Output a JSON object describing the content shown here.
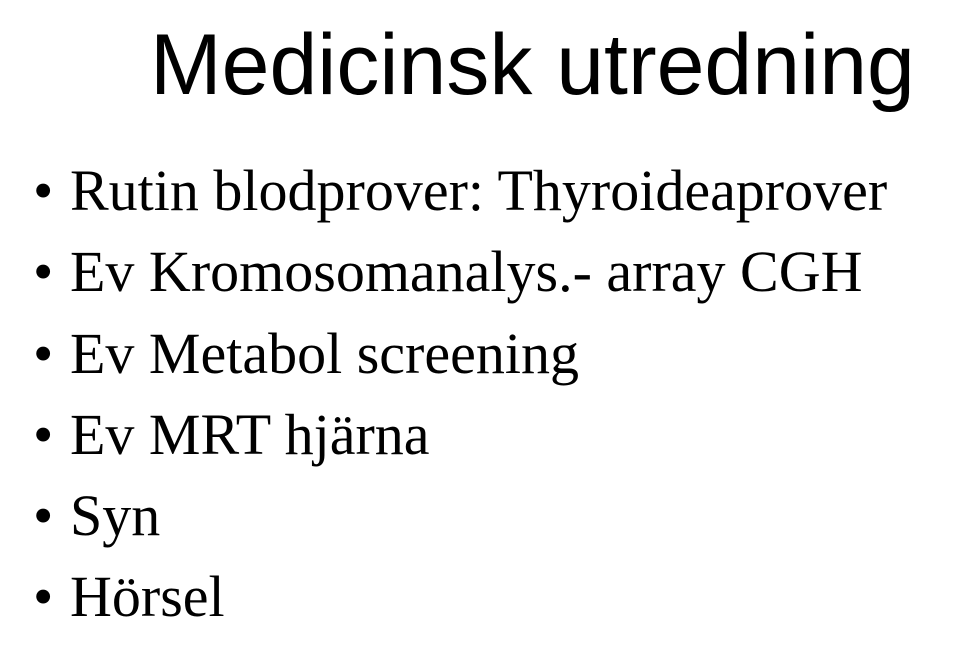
{
  "title": "Medicinsk utredning",
  "bullets": [
    "Rutin blodprover: Thyroideaprover",
    "Ev Kromosomanalys.- array CGH",
    "Ev Metabol screening",
    "Ev MRT hjärna",
    "Syn",
    "Hörsel"
  ],
  "colors": {
    "background": "#ffffff",
    "text": "#000000"
  },
  "typography": {
    "title_font": "Arial",
    "title_size_pt": 64,
    "body_font": "Times New Roman",
    "body_size_pt": 44
  }
}
